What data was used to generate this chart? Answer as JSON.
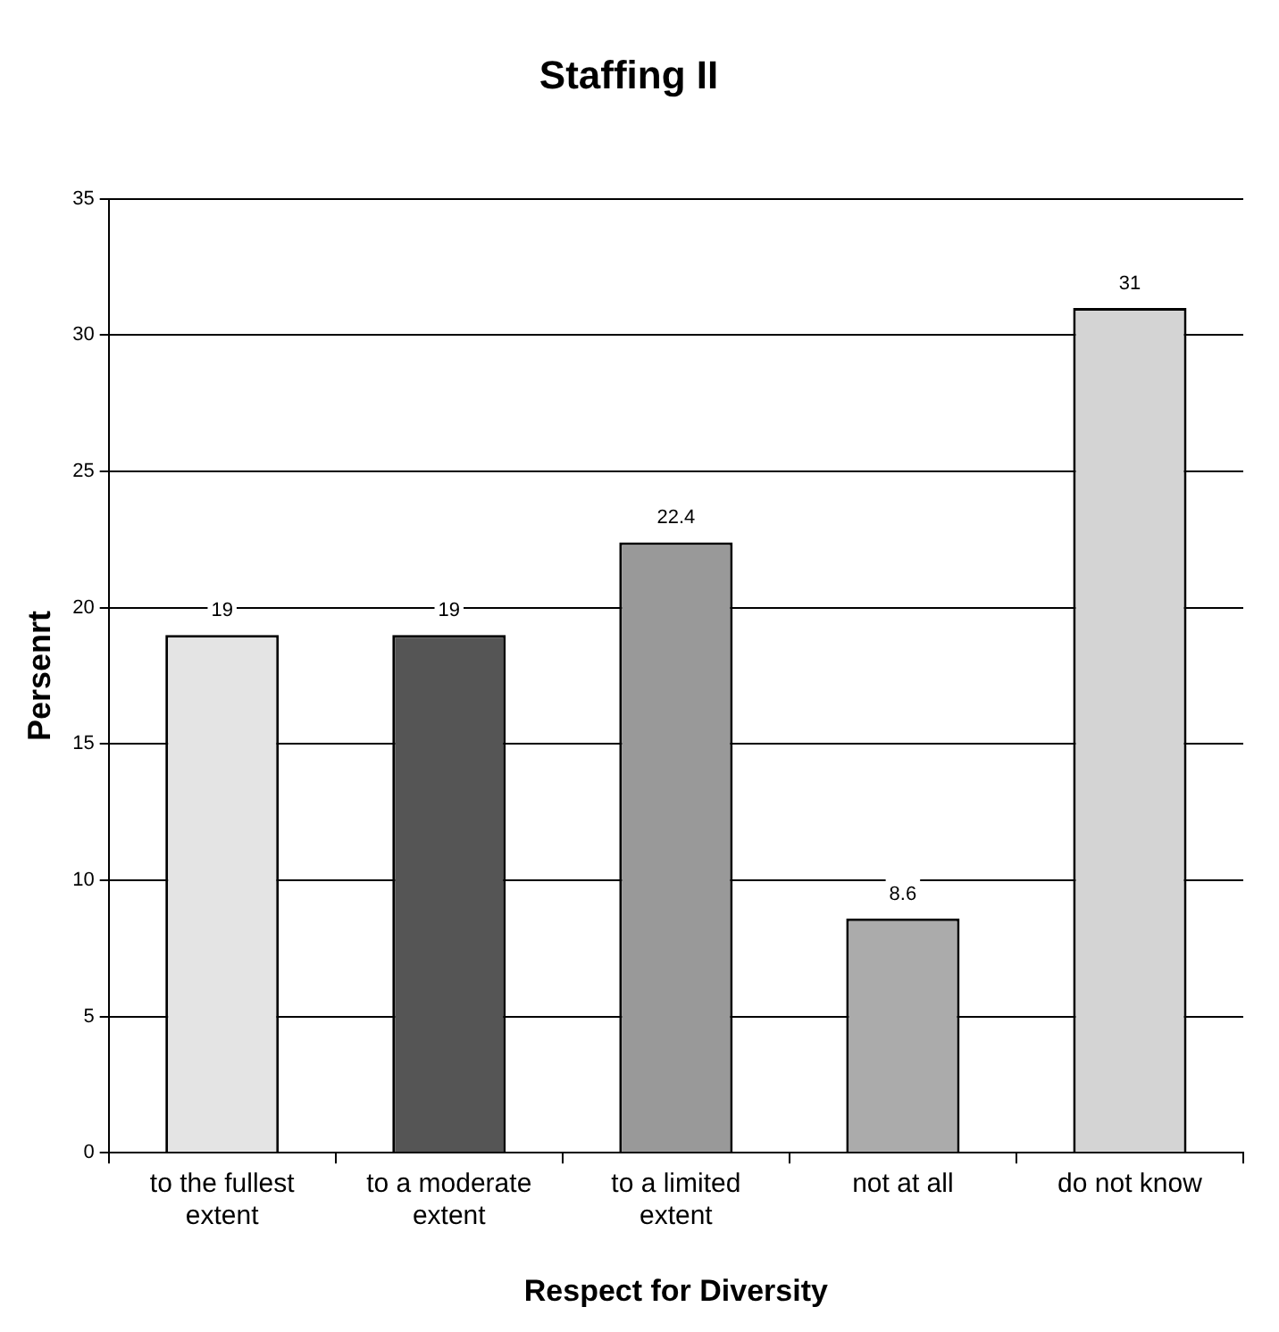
{
  "chart_data": {
    "type": "bar",
    "title": "Staffing II",
    "xlabel": "Respect for Diversity",
    "ylabel": "Persenrt",
    "categories": [
      "to the fullest extent",
      "to a moderate extent",
      "to a limited extent",
      "not at all",
      "do not know"
    ],
    "values": [
      19,
      19,
      22.4,
      8.6,
      31
    ],
    "colors": [
      "#e4e4e4",
      "#555555",
      "#999999",
      "#ababab",
      "#d4d4d4"
    ],
    "ylim": [
      0,
      35
    ],
    "yticks": [
      0,
      5,
      10,
      15,
      20,
      25,
      30,
      35
    ],
    "grid": "y",
    "legend": false,
    "data_labels": true
  }
}
